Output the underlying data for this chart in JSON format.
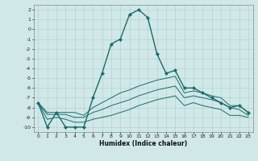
{
  "xlabel": "Humidex (Indice chaleur)",
  "ylabel": "",
  "bg_color": "#d0e8e8",
  "grid_color": "#b0cccc",
  "line_color": "#1a6b6b",
  "xlim": [
    -0.5,
    23.5
  ],
  "ylim": [
    -10.5,
    2.5
  ],
  "xtick_labels": [
    "0",
    "1",
    "2",
    "3",
    "4",
    "5",
    "6",
    "7",
    "8",
    "9",
    "10",
    "11",
    "12",
    "13",
    "14",
    "15",
    "16",
    "17",
    "18",
    "19",
    "20",
    "21",
    "22",
    "23"
  ],
  "xticks": [
    0,
    1,
    2,
    3,
    4,
    5,
    6,
    7,
    8,
    9,
    10,
    11,
    12,
    13,
    14,
    15,
    16,
    17,
    18,
    19,
    20,
    21,
    22,
    23
  ],
  "yticks": [
    2,
    1,
    0,
    -1,
    -2,
    -3,
    -4,
    -5,
    -6,
    -7,
    -8,
    -9,
    -10
  ],
  "series": [
    {
      "x": [
        0,
        1,
        2,
        3,
        4,
        5,
        6,
        7,
        8,
        9,
        10,
        11,
        12,
        13,
        14,
        15,
        16,
        17,
        18,
        19,
        20,
        21,
        22,
        23
      ],
      "y": [
        -7.5,
        -10.0,
        -8.5,
        -10.0,
        -10.0,
        -10.0,
        -7.0,
        -4.5,
        -1.5,
        -1.0,
        1.5,
        2.0,
        1.2,
        -2.5,
        -4.5,
        -4.2,
        -6.0,
        -6.0,
        -6.5,
        -7.0,
        -7.5,
        -8.0,
        -7.8,
        -8.5
      ],
      "marker": "D",
      "markersize": 2.2,
      "linewidth": 1.0
    },
    {
      "x": [
        0,
        1,
        2,
        3,
        4,
        5,
        6,
        7,
        8,
        9,
        10,
        11,
        12,
        13,
        14,
        15,
        16,
        17,
        18,
        19,
        20,
        21,
        22,
        23
      ],
      "y": [
        -7.5,
        -8.5,
        -8.5,
        -8.5,
        -8.5,
        -8.8,
        -8.0,
        -7.5,
        -7.0,
        -6.5,
        -6.2,
        -5.8,
        -5.5,
        -5.2,
        -5.0,
        -4.8,
        -6.5,
        -6.3,
        -6.5,
        -6.8,
        -7.0,
        -7.8,
        -7.8,
        -8.5
      ],
      "marker": null,
      "markersize": 0,
      "linewidth": 0.7
    },
    {
      "x": [
        0,
        1,
        2,
        3,
        4,
        5,
        6,
        7,
        8,
        9,
        10,
        11,
        12,
        13,
        14,
        15,
        16,
        17,
        18,
        19,
        20,
        21,
        22,
        23
      ],
      "y": [
        -7.5,
        -8.7,
        -8.7,
        -8.7,
        -9.0,
        -9.0,
        -8.5,
        -8.2,
        -7.8,
        -7.5,
        -7.2,
        -6.8,
        -6.5,
        -6.2,
        -6.0,
        -5.8,
        -7.0,
        -6.8,
        -7.0,
        -7.2,
        -7.5,
        -8.0,
        -8.2,
        -8.8
      ],
      "marker": null,
      "markersize": 0,
      "linewidth": 0.7
    },
    {
      "x": [
        0,
        1,
        2,
        3,
        4,
        5,
        6,
        7,
        8,
        9,
        10,
        11,
        12,
        13,
        14,
        15,
        16,
        17,
        18,
        19,
        20,
        21,
        22,
        23
      ],
      "y": [
        -7.5,
        -9.2,
        -9.0,
        -9.2,
        -9.5,
        -9.5,
        -9.2,
        -9.0,
        -8.8,
        -8.5,
        -8.2,
        -7.8,
        -7.5,
        -7.2,
        -7.0,
        -6.8,
        -7.8,
        -7.5,
        -7.8,
        -8.0,
        -8.2,
        -8.8,
        -8.8,
        -9.0
      ],
      "marker": null,
      "markersize": 0,
      "linewidth": 0.7
    }
  ],
  "tick_fontsize": 4.5,
  "xlabel_fontsize": 5.5,
  "tick_color": "#222222",
  "spine_color": "#888888"
}
